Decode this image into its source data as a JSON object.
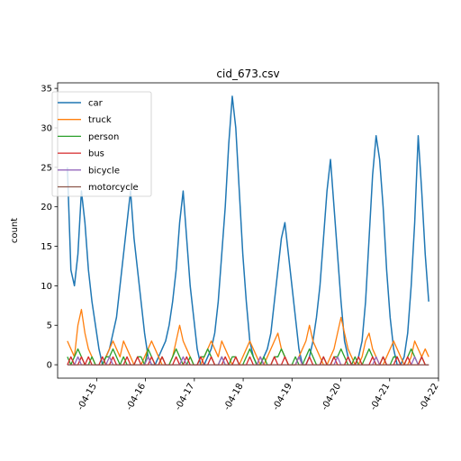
{
  "chart_data": {
    "type": "line",
    "title": "cid_673.csv",
    "xlabel": "",
    "ylabel": "count",
    "x_ticks": [
      "-04-15",
      "-04-16",
      "-04-17",
      "-04-18",
      "-04-19",
      "-04-20",
      "-04-21",
      "-04-22"
    ],
    "xlim": [
      -0.8,
      7.0
    ],
    "x_start": -0.6,
    "x_end": 6.8,
    "ylim": [
      -1.7,
      35.7
    ],
    "y_ticks": [
      0,
      5,
      10,
      15,
      20,
      25,
      30,
      35
    ],
    "grid": false,
    "legend_position": "upper-left",
    "series": [
      {
        "name": "car",
        "color": "#1f77b4",
        "values": [
          25,
          12,
          10,
          14,
          22,
          18,
          12,
          8,
          5,
          2,
          0,
          1,
          2,
          4,
          6,
          10,
          14,
          18,
          22,
          16,
          12,
          8,
          4,
          1,
          0,
          0,
          1,
          2,
          3,
          5,
          8,
          12,
          18,
          22,
          16,
          10,
          6,
          2,
          0,
          0,
          1,
          2,
          4,
          8,
          14,
          20,
          28,
          34,
          30,
          22,
          14,
          8,
          3,
          1,
          0,
          0,
          1,
          2,
          4,
          8,
          12,
          16,
          18,
          14,
          10,
          6,
          2,
          0,
          0,
          1,
          3,
          6,
          10,
          16,
          22,
          26,
          20,
          14,
          8,
          3,
          1,
          0,
          0,
          1,
          3,
          8,
          16,
          24,
          29,
          26,
          20,
          12,
          6,
          2,
          0,
          0,
          1,
          4,
          10,
          18,
          29,
          22,
          14,
          8
        ]
      },
      {
        "name": "truck",
        "color": "#ff7f0e",
        "values": [
          3,
          2,
          1,
          5,
          7,
          4,
          2,
          1,
          0,
          0,
          0,
          1,
          2,
          3,
          2,
          1,
          3,
          2,
          1,
          0,
          0,
          0,
          1,
          2,
          3,
          2,
          1,
          0,
          0,
          0,
          1,
          3,
          5,
          3,
          2,
          1,
          0,
          0,
          0,
          1,
          2,
          3,
          2,
          1,
          3,
          2,
          1,
          0,
          0,
          0,
          1,
          2,
          3,
          2,
          1,
          0,
          0,
          1,
          2,
          3,
          4,
          2,
          1,
          0,
          0,
          0,
          1,
          2,
          3,
          5,
          3,
          2,
          1,
          0,
          0,
          1,
          2,
          4,
          6,
          4,
          2,
          1,
          0,
          0,
          1,
          3,
          4,
          2,
          1,
          0,
          0,
          1,
          2,
          3,
          2,
          1,
          0,
          0,
          1,
          3,
          2,
          1,
          2,
          1
        ]
      },
      {
        "name": "person",
        "color": "#2ca02c",
        "values": [
          1,
          0,
          1,
          2,
          1,
          0,
          0,
          1,
          0,
          0,
          0,
          1,
          1,
          2,
          1,
          0,
          1,
          0,
          0,
          0,
          1,
          1,
          0,
          2,
          1,
          0,
          0,
          1,
          0,
          0,
          1,
          2,
          1,
          0,
          0,
          1,
          0,
          0,
          1,
          1,
          2,
          1,
          0,
          0,
          1,
          0,
          0,
          1,
          1,
          0,
          0,
          1,
          2,
          1,
          0,
          0,
          1,
          0,
          0,
          1,
          1,
          2,
          1,
          0,
          0,
          1,
          0,
          0,
          1,
          2,
          1,
          0,
          0,
          1,
          0,
          0,
          1,
          1,
          2,
          1,
          0,
          0,
          1,
          0,
          0,
          1,
          2,
          1,
          0,
          0,
          1,
          0,
          0,
          1,
          1,
          0,
          0,
          1,
          2,
          1,
          0,
          1,
          0,
          0
        ]
      },
      {
        "name": "bus",
        "color": "#d62728",
        "values": [
          0,
          1,
          0,
          0,
          1,
          0,
          1,
          0,
          0,
          0,
          1,
          0,
          0,
          1,
          0,
          0,
          0,
          1,
          0,
          0,
          1,
          0,
          0,
          0,
          1,
          0,
          0,
          1,
          0,
          0,
          0,
          1,
          0,
          0,
          1,
          0,
          0,
          0,
          1,
          0,
          0,
          1,
          0,
          0,
          0,
          1,
          0,
          0,
          1,
          0,
          0,
          0,
          1,
          0,
          0,
          1,
          0,
          0,
          0,
          1,
          0,
          0,
          1,
          0,
          0,
          0,
          1,
          0,
          0,
          1,
          0,
          0,
          0,
          1,
          0,
          0,
          1,
          0,
          0,
          0,
          1,
          0,
          0,
          1,
          0,
          0,
          0,
          1,
          0,
          0,
          1,
          0,
          0,
          0,
          1,
          0,
          0,
          1,
          0,
          0,
          0,
          1,
          0,
          0
        ]
      },
      {
        "name": "bicycle",
        "color": "#9467bd",
        "values": [
          0,
          0,
          0,
          1,
          0,
          0,
          0,
          0,
          0,
          0,
          0,
          0,
          1,
          0,
          0,
          0,
          0,
          0,
          0,
          0,
          0,
          0,
          0,
          1,
          0,
          0,
          0,
          0,
          0,
          0,
          0,
          0,
          0,
          1,
          0,
          0,
          0,
          0,
          0,
          0,
          0,
          0,
          0,
          0,
          1,
          0,
          0,
          0,
          0,
          0,
          0,
          0,
          0,
          0,
          0,
          1,
          0,
          0,
          0,
          0,
          0,
          0,
          0,
          0,
          0,
          0,
          1,
          0,
          0,
          0,
          0,
          0,
          0,
          0,
          0,
          0,
          0,
          1,
          0,
          0,
          0,
          0,
          0,
          0,
          0,
          0,
          0,
          0,
          1,
          0,
          0,
          0,
          0,
          0,
          0,
          0,
          0,
          0,
          0,
          1,
          0,
          0,
          0,
          0
        ]
      },
      {
        "name": "motorcycle",
        "color": "#8c564b",
        "values": [
          0,
          0,
          0,
          0,
          0,
          0,
          0,
          0,
          0,
          0,
          0,
          0,
          0,
          0,
          0,
          0,
          0,
          0,
          0,
          0,
          0,
          0,
          0,
          0,
          0,
          0,
          0,
          0,
          0,
          0,
          0,
          0,
          0,
          0,
          0,
          0,
          0,
          0,
          0,
          0,
          0,
          0,
          0,
          0,
          0,
          0,
          0,
          0,
          0,
          0,
          0,
          0,
          0,
          0,
          0,
          0,
          0,
          0,
          0,
          0,
          0,
          0,
          0,
          0,
          0,
          0,
          0,
          0,
          0,
          0,
          0,
          0,
          0,
          0,
          0,
          0,
          0,
          0,
          0,
          0,
          0,
          0,
          0,
          0,
          0,
          0,
          0,
          0,
          0,
          0,
          0,
          0,
          0,
          0,
          0,
          0,
          0,
          0,
          0,
          0,
          0,
          0,
          0,
          0
        ]
      }
    ]
  }
}
